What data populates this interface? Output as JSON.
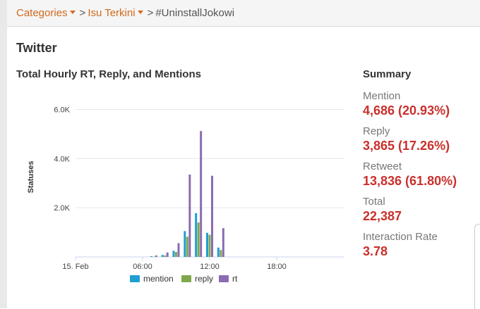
{
  "breadcrumb": {
    "item1": "Categories",
    "item2": "Isu Terkini",
    "separator": ">",
    "current": "#UninstallJokowi"
  },
  "section_title": "Twitter",
  "summary": {
    "title": "Summary",
    "items": [
      {
        "label": "Mention",
        "value": "4,686 (20.93%)"
      },
      {
        "label": "Reply",
        "value": "3,865 (17.26%)"
      },
      {
        "label": "Retweet",
        "value": "13,836 (61.80%)"
      },
      {
        "label": "Total",
        "value": "22,387"
      },
      {
        "label": "Interaction Rate",
        "value": "3.78"
      }
    ]
  },
  "colors": {
    "mention": "#1f9ed1",
    "reply": "#7fa84c",
    "rt": "#8b6bb1",
    "accent": "#d2691e",
    "value": "#c9302c"
  },
  "chart_data": {
    "type": "bar",
    "title": "Total Hourly RT, Reply, and Mentions",
    "xlabel": "",
    "ylabel": "Statuses",
    "x_tick_labels": [
      "15. Feb",
      "06:00",
      "12:00",
      "18:00"
    ],
    "x_tick_hours": [
      0,
      6,
      12,
      18
    ],
    "x_range_hours": [
      0,
      24
    ],
    "y_tick_labels": [
      "2.0K",
      "4.0K",
      "6.0K"
    ],
    "y_tick_values": [
      2000,
      4000,
      6000
    ],
    "ylim": [
      0,
      6500
    ],
    "grid": true,
    "legend_position": "bottom",
    "hours": [
      7,
      8,
      9,
      10,
      11,
      12,
      13
    ],
    "series": [
      {
        "name": "mention",
        "values": [
          30,
          80,
          250,
          1050,
          1780,
          980,
          380
        ]
      },
      {
        "name": "reply",
        "values": [
          10,
          60,
          200,
          820,
          1400,
          900,
          280
        ]
      },
      {
        "name": "rt",
        "values": [
          60,
          180,
          560,
          3350,
          5120,
          3300,
          1170
        ]
      }
    ]
  }
}
